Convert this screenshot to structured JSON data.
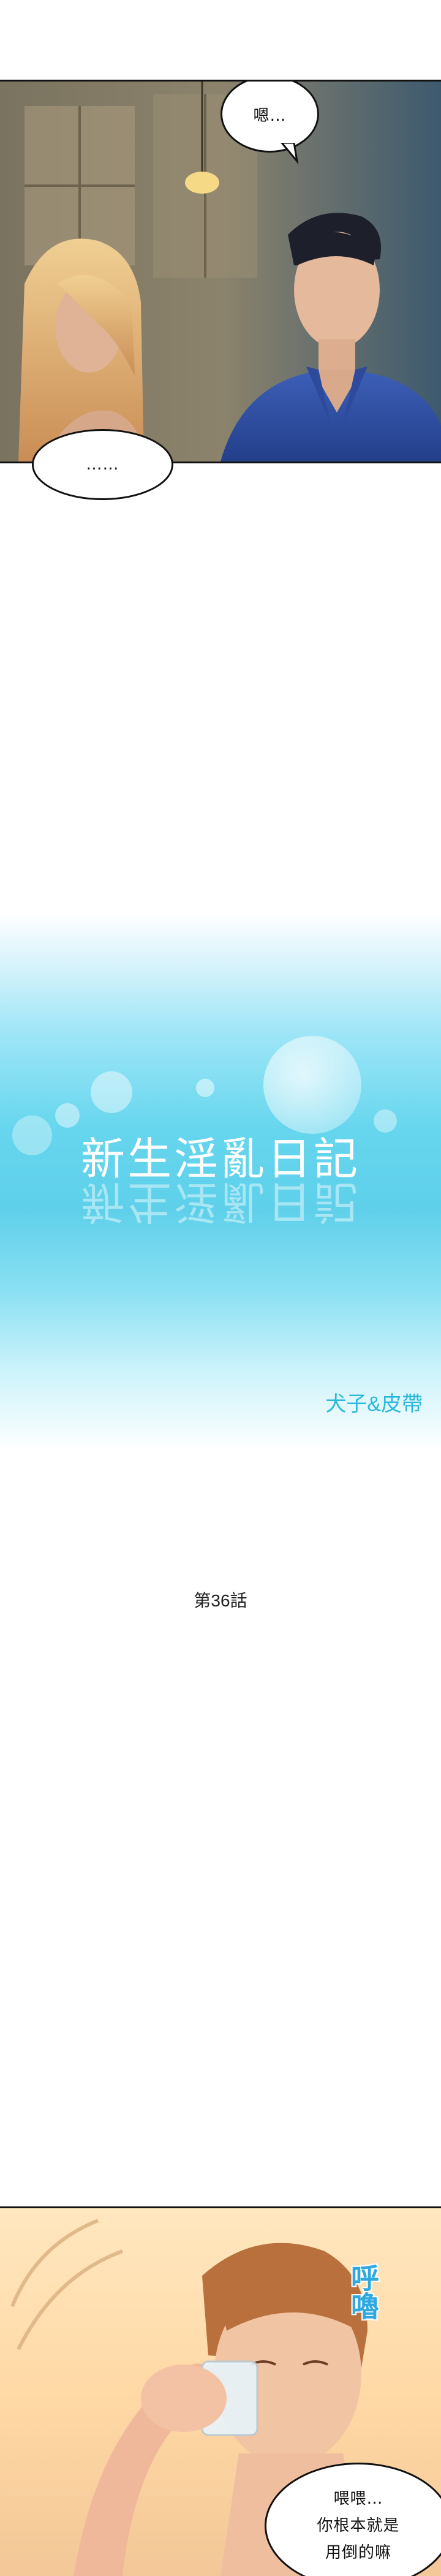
{
  "panel1": {
    "bubble_top": "嗯…",
    "bubble_bottom": "……"
  },
  "title": {
    "main": "新生淫亂日記",
    "authors": "犬子&皮帶"
  },
  "chapter": {
    "label": "第36話"
  },
  "panel_last": {
    "sfx": "呼嚕",
    "bubble_line1": "喂喂…",
    "bubble_line2": "你根本就是",
    "bubble_line3": "用倒的嘛"
  }
}
